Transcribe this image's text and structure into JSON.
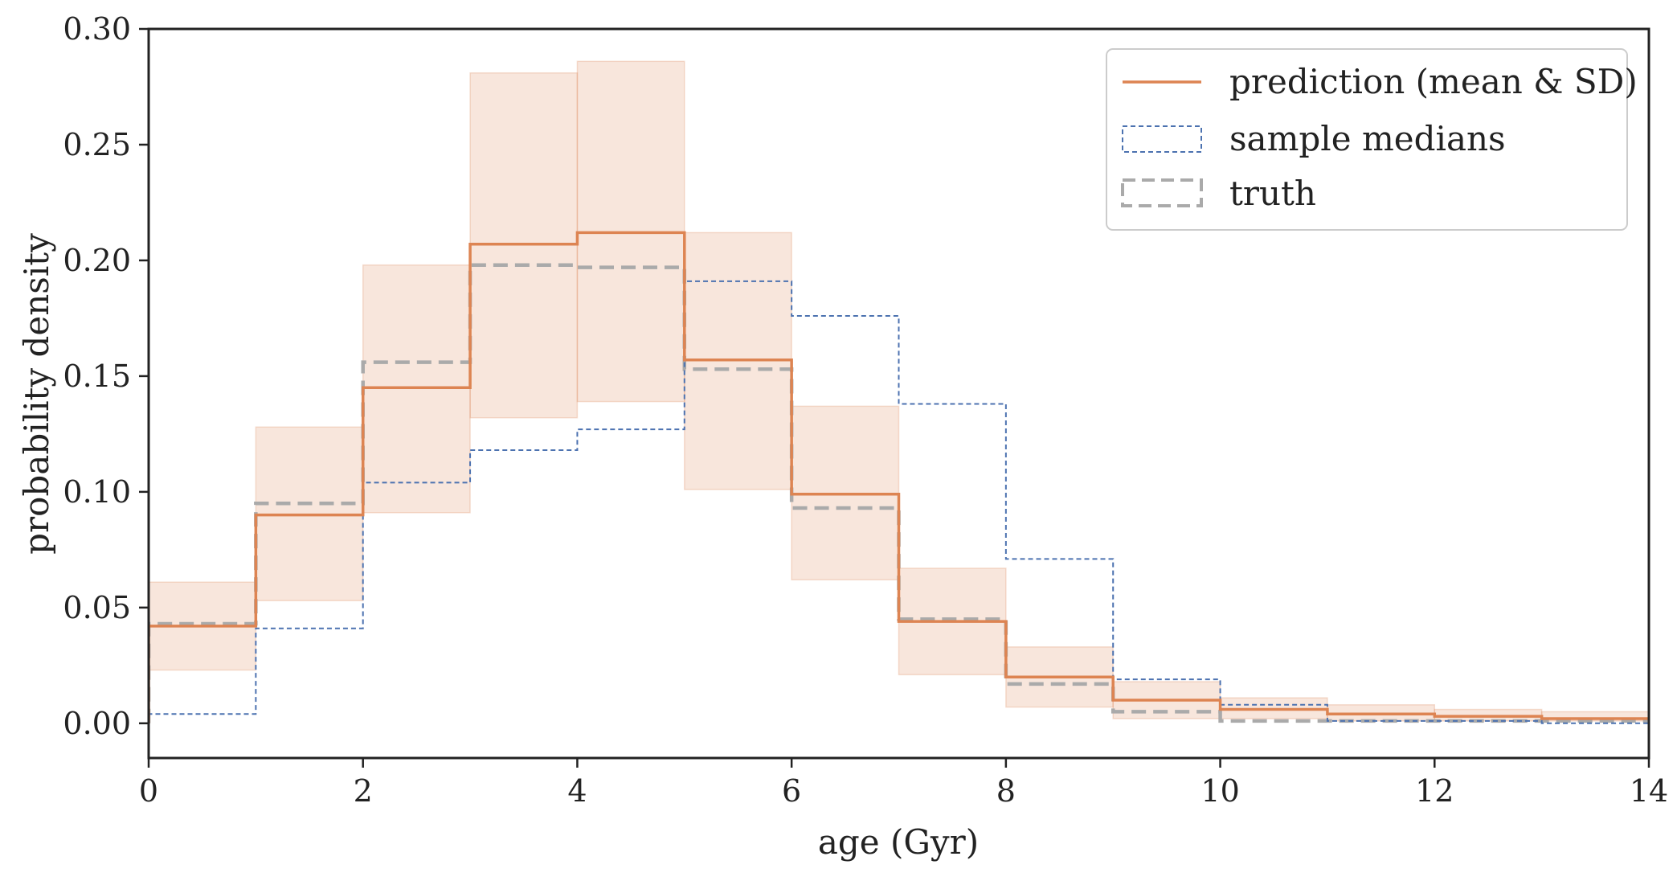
{
  "chart_data": {
    "type": "step",
    "xlabel": "age (Gyr)",
    "ylabel": "probability density",
    "xlim": [
      0,
      14
    ],
    "ylim": [
      -0.015,
      0.3
    ],
    "x_ticks": [
      0,
      2,
      4,
      6,
      8,
      10,
      12,
      14
    ],
    "y_ticks": [
      0.0,
      0.05,
      0.1,
      0.15,
      0.2,
      0.25,
      0.3
    ],
    "x_tick_labels": [
      "0",
      "2",
      "4",
      "6",
      "8",
      "10",
      "12",
      "14"
    ],
    "y_tick_labels": [
      "0.00",
      "0.05",
      "0.10",
      "0.15",
      "0.20",
      "0.25",
      "0.30"
    ],
    "bin_edges": [
      0,
      1,
      2,
      3,
      4,
      5,
      6,
      7,
      8,
      9,
      10,
      11,
      12,
      13,
      14
    ],
    "legend_position": "top-right",
    "series": [
      {
        "name": "prediction (mean & SD)",
        "color": "#dd8452",
        "style": "solid",
        "values": [
          0.042,
          0.09,
          0.145,
          0.207,
          0.212,
          0.157,
          0.099,
          0.044,
          0.02,
          0.01,
          0.006,
          0.004,
          0.003,
          0.002
        ],
        "lower": [
          0.023,
          0.053,
          0.091,
          0.132,
          0.139,
          0.101,
          0.062,
          0.021,
          0.007,
          0.002,
          0.002,
          0.001,
          0.001,
          0.001
        ],
        "upper": [
          0.061,
          0.128,
          0.198,
          0.281,
          0.286,
          0.212,
          0.137,
          0.067,
          0.033,
          0.018,
          0.011,
          0.008,
          0.006,
          0.005
        ]
      },
      {
        "name": "sample medians",
        "color": "#4c72b0",
        "style": "dotted",
        "values": [
          0.004,
          0.041,
          0.104,
          0.118,
          0.127,
          0.191,
          0.176,
          0.138,
          0.071,
          0.019,
          0.008,
          0.001,
          0.001,
          0.0
        ]
      },
      {
        "name": "truth",
        "color": "#aaaaaa",
        "style": "dashed",
        "values": [
          0.043,
          0.095,
          0.156,
          0.198,
          0.197,
          0.153,
          0.093,
          0.045,
          0.017,
          0.005,
          0.001,
          0.001,
          0.001,
          0.001
        ]
      }
    ]
  }
}
